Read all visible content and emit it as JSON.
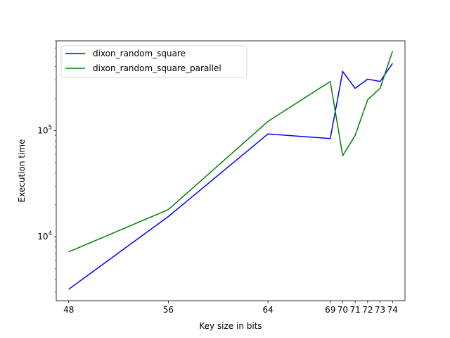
{
  "chart_data": {
    "type": "line",
    "xlabel": "Key size in bits",
    "ylabel": "Execution time",
    "yscale": "log",
    "ylim": [
      2500,
      700000
    ],
    "xlim": [
      47,
      75
    ],
    "x_ticks": [
      48,
      56,
      64,
      69,
      70,
      71,
      72,
      73,
      74
    ],
    "x_tick_labels": [
      "48",
      "56",
      "64",
      "69",
      "70",
      "71",
      "72",
      "73",
      "74"
    ],
    "y_ticks": [
      {
        "value": 10000,
        "base": "10",
        "exp": "4"
      },
      {
        "value": 100000,
        "base": "10",
        "exp": "5"
      }
    ],
    "legend_position": "upper-left",
    "grid": false,
    "series": [
      {
        "name": "dixon_random_square",
        "color": "#0000ff",
        "x": [
          48,
          56,
          64,
          69,
          70,
          71,
          72,
          73,
          74
        ],
        "y": [
          3200,
          15500,
          93000,
          84000,
          360000,
          250000,
          305000,
          290000,
          430000
        ]
      },
      {
        "name": "dixon_random_square_parallel",
        "color": "#008000",
        "x": [
          48,
          56,
          64,
          69,
          70,
          71,
          72,
          73,
          74
        ],
        "y": [
          7200,
          18000,
          122000,
          290000,
          58000,
          90000,
          195000,
          250000,
          560000
        ]
      }
    ]
  }
}
